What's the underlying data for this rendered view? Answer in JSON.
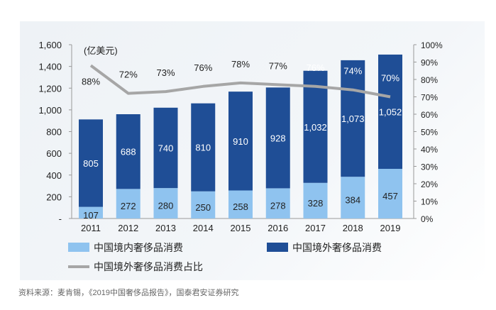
{
  "chart_data": {
    "type": "bar",
    "stacked": true,
    "unit_label": "(亿美元)",
    "categories": [
      "2011",
      "2012",
      "2013",
      "2014",
      "2015",
      "2016",
      "2017",
      "2018",
      "2019"
    ],
    "series": [
      {
        "name": "中国境内奢侈品消费",
        "type": "bar",
        "color": "#8fc3ef",
        "values": [
          107,
          272,
          280,
          250,
          258,
          278,
          328,
          384,
          457
        ]
      },
      {
        "name": "中国境外奢侈品消费",
        "type": "bar",
        "color": "#1f4e96",
        "values": [
          805,
          688,
          740,
          810,
          910,
          928,
          1032,
          1073,
          1052
        ]
      },
      {
        "name": "中国境外奢侈品消费占比",
        "type": "line",
        "axis": "right",
        "color": "#a6a6a6",
        "values": [
          88,
          72,
          73,
          76,
          78,
          77,
          76,
          74,
          70
        ]
      }
    ],
    "value_labels": {
      "domestic": [
        "107",
        "272",
        "280",
        "250",
        "258",
        "278",
        "328",
        "384",
        "457"
      ],
      "overseas": [
        "805",
        "688",
        "740",
        "810",
        "910",
        "928",
        "1,032",
        "1,073",
        "1,052"
      ],
      "share": [
        "88%",
        "72%",
        "73%",
        "76%",
        "78%",
        "77%",
        "76%",
        "74%",
        "70%"
      ]
    },
    "left_axis": {
      "ylim": [
        0,
        1600
      ],
      "ticks": [
        "-",
        "200",
        "400",
        "600",
        "800",
        "1,000",
        "1,200",
        "1,400",
        "1,600"
      ]
    },
    "right_axis": {
      "ylim": [
        0,
        100
      ],
      "ticks": [
        "0%",
        "10%",
        "20%",
        "30%",
        "40%",
        "50%",
        "60%",
        "70%",
        "80%",
        "90%",
        "100%"
      ]
    },
    "grid": false,
    "legend_position": "bottom"
  },
  "source": "资料来源：麦肯锡，《2019中国奢侈品报告》，国泰君安证券研究"
}
